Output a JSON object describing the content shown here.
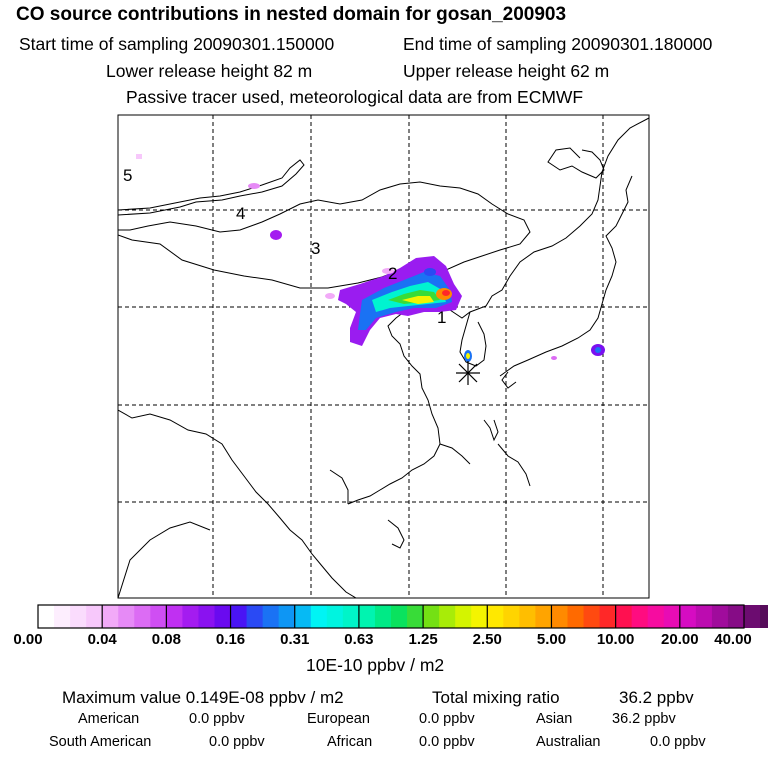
{
  "header": {
    "title": "CO  source contributions in nested domain for gosan_200903",
    "start_label": "Start time of sampling 20090301.150000",
    "end_label": "End time of sampling 20090301.180000",
    "lower_label": "Lower release height   82 m",
    "upper_label": "Upper release height   62 m",
    "tracer_label": "Passive tracer used, meteorological data are from ECMWF"
  },
  "chart_data": {
    "type": "heatmap",
    "title": "CO  source contributions in nested domain for gosan_200903",
    "map_labels": [
      "1",
      "2",
      "3",
      "4",
      "5"
    ],
    "colorbar": {
      "tick_labels": [
        "0.00",
        "0.04",
        "0.08",
        "0.16",
        "0.31",
        "0.63",
        "1.25",
        "2.50",
        "5.00",
        "10.00",
        "20.00",
        "40.00"
      ],
      "units_label": "10E-10 ppbv / m2",
      "colors": [
        "#ffffff",
        "#fdeefe",
        "#fadcfd",
        "#f7c8fb",
        "#f2aaf8",
        "#e68af6",
        "#dc6cf4",
        "#cf4ef3",
        "#c030f2",
        "#a41cf0",
        "#8a12f0",
        "#6a0af0",
        "#4a14f4",
        "#2a4af4",
        "#1a72f4",
        "#0e96f4",
        "#06baf4",
        "#00f4f4",
        "#00f4e0",
        "#00f4c8",
        "#00f4b0",
        "#00ea86",
        "#0ae25e",
        "#38dc38",
        "#74e014",
        "#a8ec08",
        "#d4f400",
        "#f4f400",
        "#ffe800",
        "#ffd400",
        "#ffbe00",
        "#ffa400",
        "#ff8a00",
        "#ff6a00",
        "#ff4a10",
        "#ff2828",
        "#ff1050",
        "#ff0c80",
        "#f60ca0",
        "#e80cb4",
        "#d60cc2",
        "#bc0cb0",
        "#a00c9c",
        "#860c86",
        "#6c0c70",
        "#560c5a",
        "#420c44",
        "#300c30"
      ]
    }
  },
  "stats": {
    "max_label": "Maximum value  0.149E-08 ppbv / m2",
    "total_label": "Total mixing ratio",
    "total_value": "36.2 ppbv"
  },
  "sources": {
    "american_label": "American",
    "american_value": "0.0 ppbv",
    "european_label": "European",
    "european_value": "0.0 ppbv",
    "asian_label": "Asian",
    "asian_value": "36.2 ppbv",
    "south_american_label": "South American",
    "south_american_value": "0.0 ppbv",
    "african_label": "African",
    "african_value": "0.0 ppbv",
    "australian_label": "Australian",
    "australian_value": "0.0 ppbv"
  }
}
